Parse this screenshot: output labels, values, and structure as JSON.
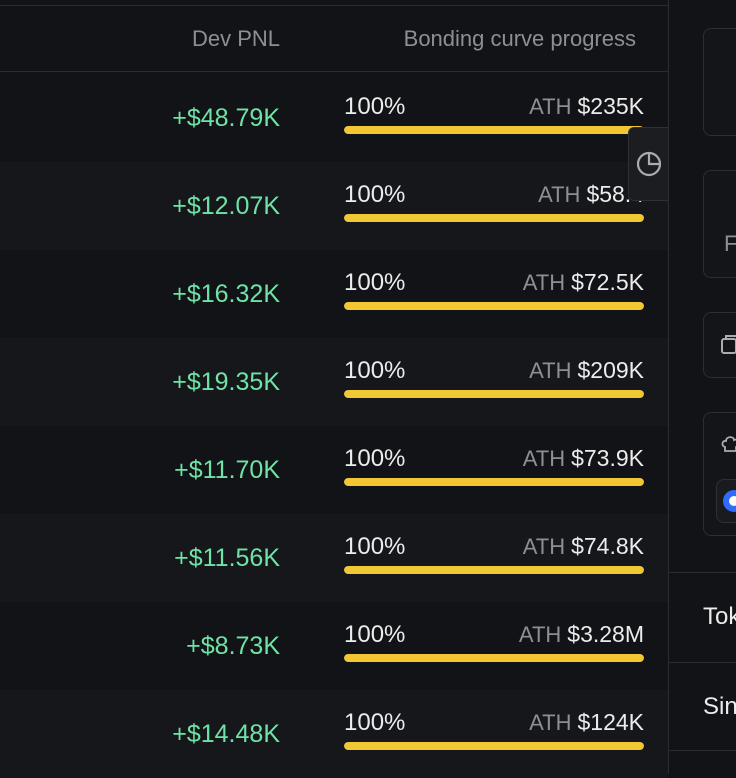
{
  "table": {
    "headers": {
      "dev_pnl": "Dev PNL",
      "bonding": "Bonding curve progress"
    },
    "rows": [
      {
        "dev_pnl": "+$48.79K",
        "progress_label": "100%",
        "progress": 1.0,
        "ath_label": "ATH",
        "ath_value": "$235K"
      },
      {
        "dev_pnl": "+$12.07K",
        "progress_label": "100%",
        "progress": 1.0,
        "ath_label": "ATH",
        "ath_value": "$58.4"
      },
      {
        "dev_pnl": "+$16.32K",
        "progress_label": "100%",
        "progress": 1.0,
        "ath_label": "ATH",
        "ath_value": "$72.5K"
      },
      {
        "dev_pnl": "+$19.35K",
        "progress_label": "100%",
        "progress": 1.0,
        "ath_label": "ATH",
        "ath_value": "$209K"
      },
      {
        "dev_pnl": "+$11.70K",
        "progress_label": "100%",
        "progress": 1.0,
        "ath_label": "ATH",
        "ath_value": "$73.9K"
      },
      {
        "dev_pnl": "+$11.56K",
        "progress_label": "100%",
        "progress": 1.0,
        "ath_label": "ATH",
        "ath_value": "$74.8K"
      },
      {
        "dev_pnl": "+$8.73K",
        "progress_label": "100%",
        "progress": 1.0,
        "ath_label": "ATH",
        "ath_value": "$3.28M"
      },
      {
        "dev_pnl": "+$14.48K",
        "progress_label": "100%",
        "progress": 1.0,
        "ath_label": "ATH",
        "ath_value": "$124K"
      }
    ]
  },
  "floating_button": {
    "icon": "pie-chart-icon"
  },
  "side_panel": {
    "partial_letter": "F",
    "partial_labels": [
      "Tok",
      "Sin"
    ]
  },
  "colors": {
    "background": "#121316",
    "positive": "#6fe3a6",
    "progress_fill": "#f2c736",
    "muted": "#8c8f96"
  }
}
